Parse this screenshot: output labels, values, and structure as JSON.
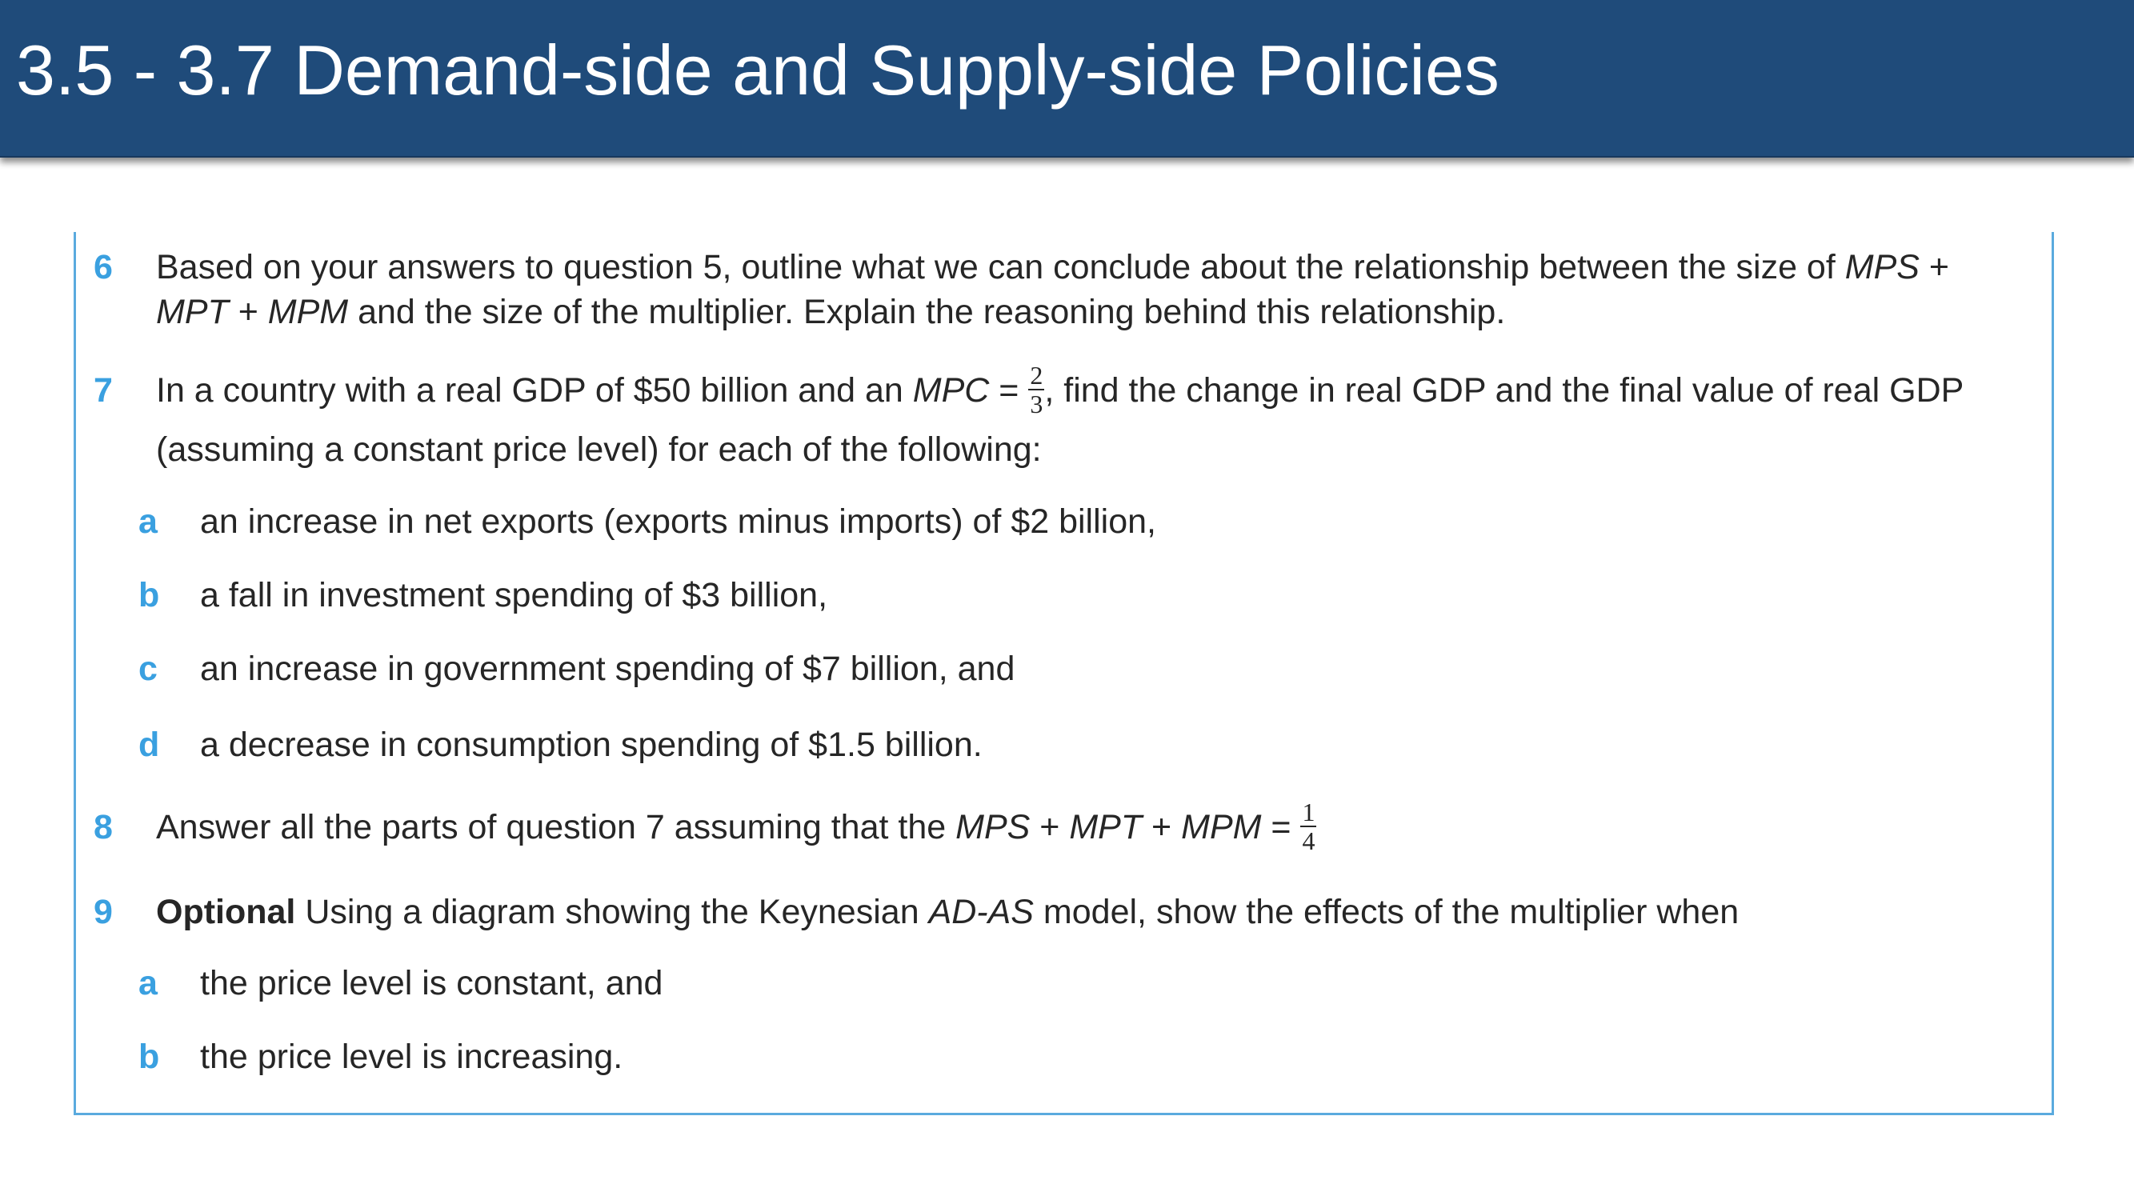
{
  "header": {
    "title": "3.5 - 3.7 Demand-side and Supply-side Policies"
  },
  "questions": [
    {
      "number": "6",
      "runs": [
        "Based on your answers to question 5, outline what we can conclude about the relationship between the size of ",
        "MPS",
        " + ",
        "MPT",
        " + ",
        "MPM",
        " and the size of the multiplier. Explain the reasoning behind this relationship."
      ]
    },
    {
      "number": "7",
      "runs": [
        "In a country with a real GDP of $50 billion and an ",
        "MPC",
        " = ",
        ", find the change in real GDP and the final value of real GDP (assuming a constant price level) for each of the following:"
      ],
      "fraction": {
        "numerator": "2",
        "denominator": "3"
      },
      "items": [
        {
          "label": "a",
          "text": "an increase in net exports (exports minus imports) of $2 billion,"
        },
        {
          "label": "b",
          "text": "a fall in investment spending of $3 billion,"
        },
        {
          "label": "c",
          "text": "an increase in government spending of $7 billion, and"
        },
        {
          "label": "d",
          "text": "a decrease in consumption spending of $1.5 billion."
        }
      ]
    },
    {
      "number": "8",
      "runs": [
        "Answer all the parts of question 7 assuming that the ",
        "MPS",
        " + ",
        "MPT",
        " + ",
        "MPM",
        " = "
      ],
      "fraction": {
        "numerator": "1",
        "denominator": "4"
      }
    },
    {
      "number": "9",
      "runs": [
        "Optional",
        " Using a diagram showing the Keynesian ",
        "AD-AS",
        " model, show the effects of the multiplier when"
      ],
      "items": [
        {
          "label": "a",
          "text": "the price level is constant, and"
        },
        {
          "label": "b",
          "text": "the price level is increasing."
        }
      ]
    }
  ]
}
